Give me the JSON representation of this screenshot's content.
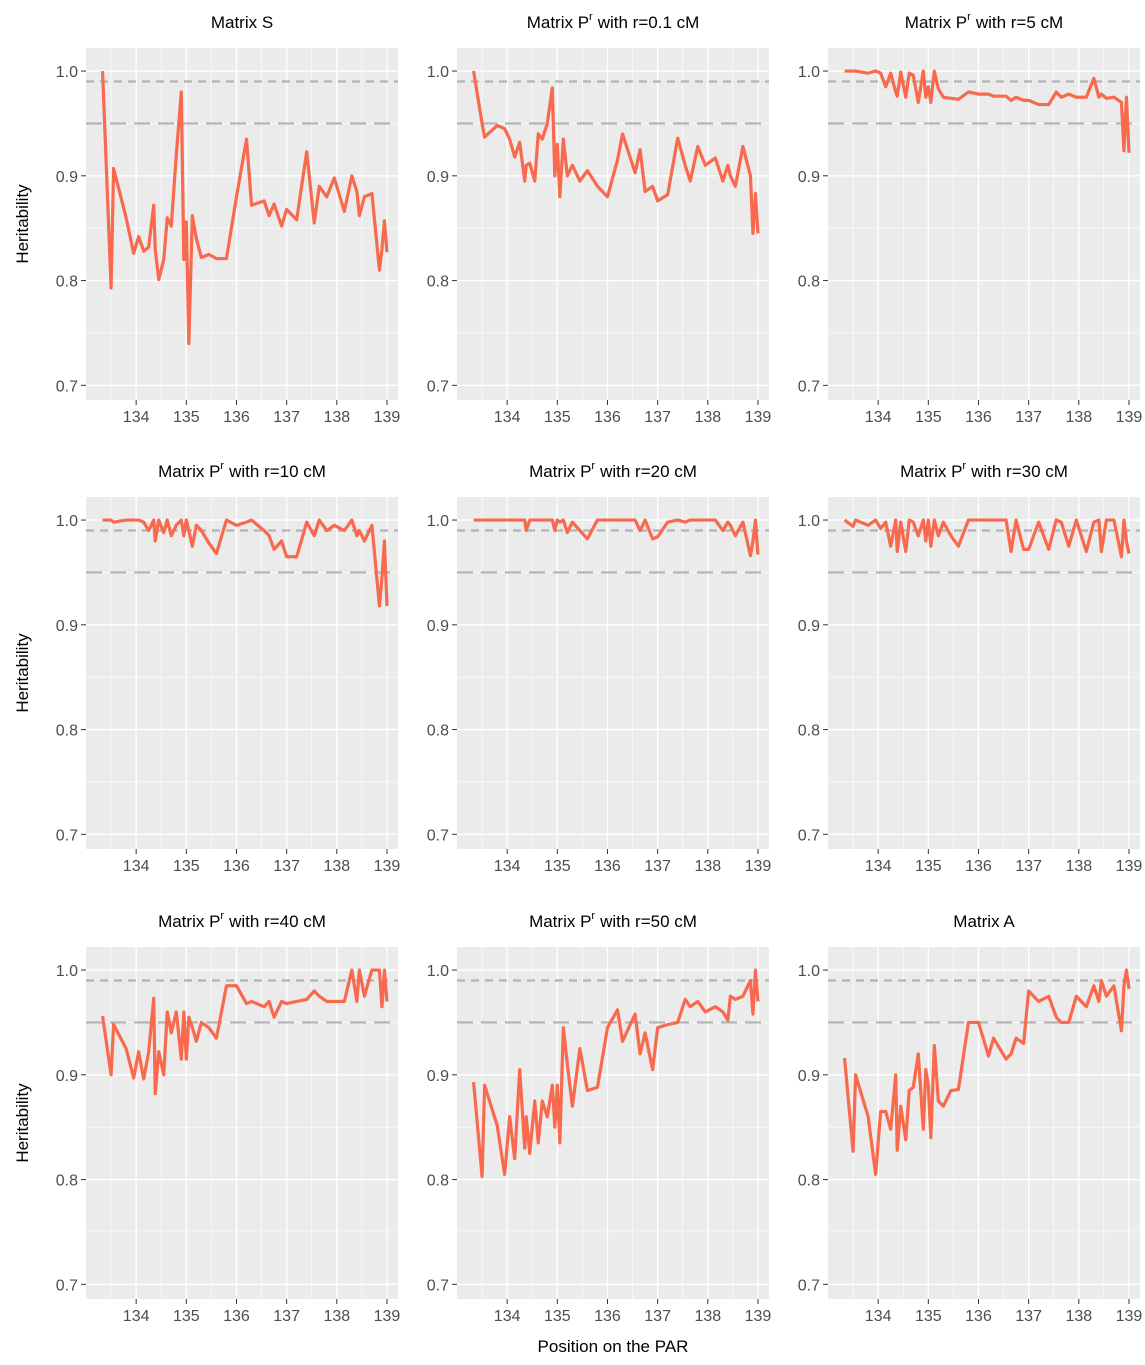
{
  "x_label": "Position on the PAR",
  "y_label": "Heritability",
  "chart_data": [
    {
      "type": "line",
      "title": "Matrix S",
      "color": "#f8694d",
      "hlines": [
        0.99,
        0.95
      ],
      "hline_styles": [
        "dashed",
        "longdash"
      ],
      "hline_color": "#b3b3b3",
      "grid": true,
      "xlim": [
        133.0,
        139.22
      ],
      "xticks": [
        134,
        135,
        136,
        137,
        138,
        139
      ],
      "ylim": [
        0.686,
        1.022
      ],
      "yticks": [
        0.7,
        0.8,
        0.9,
        {
          "value": 1,
          "label": "1.0"
        }
      ],
      "x": [
        133.33,
        133.5,
        133.55,
        133.8,
        133.95,
        134.05,
        134.15,
        134.25,
        134.35,
        134.38,
        134.45,
        134.55,
        134.62,
        134.7,
        134.8,
        134.9,
        134.95,
        135.0,
        135.05,
        135.12,
        135.2,
        135.3,
        135.45,
        135.6,
        135.8,
        136.0,
        136.2,
        136.3,
        136.55,
        136.65,
        136.75,
        136.9,
        137.0,
        137.2,
        137.4,
        137.55,
        137.65,
        137.8,
        137.95,
        138.15,
        138.3,
        138.4,
        138.45,
        138.55,
        138.7,
        138.85,
        138.9,
        138.95,
        139.0
      ],
      "values": [
        1.0,
        0.793,
        0.907,
        0.86,
        0.826,
        0.842,
        0.828,
        0.832,
        0.872,
        0.83,
        0.801,
        0.82,
        0.86,
        0.852,
        0.92,
        0.98,
        0.82,
        0.856,
        0.74,
        0.862,
        0.84,
        0.822,
        0.825,
        0.821,
        0.821,
        0.88,
        0.935,
        0.872,
        0.876,
        0.862,
        0.873,
        0.852,
        0.868,
        0.858,
        0.923,
        0.855,
        0.89,
        0.88,
        0.898,
        0.866,
        0.9,
        0.885,
        0.862,
        0.88,
        0.883,
        0.81,
        0.83,
        0.857,
        0.827
      ]
    },
    {
      "type": "line",
      "title": "Matrix P",
      "title_superscript": "r",
      "title_suffix": "with r=0.1 cM",
      "color": "#f8694d",
      "hlines": [
        0.99,
        0.95
      ],
      "hline_styles": [
        "dashed",
        "longdash"
      ],
      "hline_color": "#b3b3b3",
      "grid": true,
      "xlim": [
        133.0,
        139.22
      ],
      "xticks": [
        134,
        135,
        136,
        137,
        138,
        139
      ],
      "ylim": [
        0.686,
        1.022
      ],
      "yticks": [
        0.7,
        0.8,
        0.9,
        {
          "value": 1,
          "label": "1.0"
        }
      ],
      "x": [
        133.33,
        133.5,
        133.55,
        133.8,
        133.95,
        134.05,
        134.15,
        134.25,
        134.35,
        134.38,
        134.45,
        134.55,
        134.62,
        134.7,
        134.8,
        134.9,
        134.95,
        135.0,
        135.05,
        135.12,
        135.2,
        135.3,
        135.45,
        135.6,
        135.8,
        136.0,
        136.2,
        136.3,
        136.55,
        136.65,
        136.75,
        136.9,
        137.0,
        137.2,
        137.4,
        137.55,
        137.65,
        137.8,
        137.95,
        138.15,
        138.3,
        138.4,
        138.45,
        138.55,
        138.7,
        138.85,
        138.9,
        138.95,
        139.0
      ],
      "values": [
        1.0,
        0.95,
        0.937,
        0.948,
        0.945,
        0.935,
        0.918,
        0.932,
        0.895,
        0.91,
        0.912,
        0.895,
        0.94,
        0.935,
        0.95,
        0.984,
        0.9,
        0.93,
        0.88,
        0.935,
        0.9,
        0.91,
        0.895,
        0.905,
        0.89,
        0.88,
        0.915,
        0.94,
        0.903,
        0.925,
        0.885,
        0.89,
        0.876,
        0.882,
        0.936,
        0.91,
        0.895,
        0.928,
        0.91,
        0.917,
        0.895,
        0.91,
        0.9,
        0.89,
        0.928,
        0.9,
        0.845,
        0.883,
        0.845
      ]
    },
    {
      "type": "line",
      "title": "Matrix P",
      "title_superscript": "r",
      "title_suffix": "with r=5 cM",
      "color": "#f8694d",
      "hlines": [
        0.99,
        0.95
      ],
      "hline_styles": [
        "dashed",
        "longdash"
      ],
      "hline_color": "#b3b3b3",
      "grid": true,
      "xlim": [
        133.0,
        139.22
      ],
      "xticks": [
        134,
        135,
        136,
        137,
        138,
        139
      ],
      "ylim": [
        0.686,
        1.022
      ],
      "yticks": [
        0.7,
        0.8,
        0.9,
        {
          "value": 1,
          "label": "1.0"
        }
      ],
      "x": [
        133.33,
        133.5,
        133.55,
        133.8,
        133.95,
        134.05,
        134.15,
        134.25,
        134.35,
        134.38,
        134.45,
        134.55,
        134.62,
        134.7,
        134.8,
        134.9,
        134.95,
        135.0,
        135.05,
        135.12,
        135.2,
        135.3,
        135.45,
        135.6,
        135.8,
        136.0,
        136.2,
        136.3,
        136.55,
        136.65,
        136.75,
        136.9,
        137.0,
        137.2,
        137.4,
        137.55,
        137.65,
        137.8,
        137.95,
        138.15,
        138.3,
        138.4,
        138.45,
        138.55,
        138.7,
        138.85,
        138.9,
        138.95,
        139.0
      ],
      "values": [
        1.0,
        1.0,
        1.0,
        0.998,
        1.0,
        0.998,
        0.985,
        0.998,
        0.98,
        0.976,
        0.999,
        0.975,
        0.998,
        0.996,
        0.97,
        1.0,
        0.975,
        0.985,
        0.97,
        1.0,
        0.983,
        0.975,
        0.974,
        0.973,
        0.98,
        0.978,
        0.978,
        0.976,
        0.976,
        0.972,
        0.975,
        0.972,
        0.972,
        0.968,
        0.968,
        0.98,
        0.975,
        0.978,
        0.975,
        0.975,
        0.993,
        0.975,
        0.978,
        0.974,
        0.975,
        0.97,
        0.924,
        0.975,
        0.922
      ]
    },
    {
      "type": "line",
      "title": "Matrix P",
      "title_superscript": "r",
      "title_suffix": "with r=10 cM",
      "color": "#f8694d",
      "hlines": [
        0.99,
        0.95
      ],
      "hline_styles": [
        "dashed",
        "longdash"
      ],
      "hline_color": "#b3b3b3",
      "grid": true,
      "xlim": [
        133.0,
        139.22
      ],
      "xticks": [
        134,
        135,
        136,
        137,
        138,
        139
      ],
      "ylim": [
        0.686,
        1.022
      ],
      "yticks": [
        0.7,
        0.8,
        0.9,
        {
          "value": 1,
          "label": "1.0"
        }
      ],
      "x": [
        133.33,
        133.5,
        133.55,
        133.8,
        133.95,
        134.05,
        134.15,
        134.25,
        134.35,
        134.38,
        134.45,
        134.55,
        134.62,
        134.7,
        134.8,
        134.9,
        134.95,
        135.0,
        135.05,
        135.12,
        135.2,
        135.3,
        135.45,
        135.6,
        135.8,
        136.0,
        136.2,
        136.3,
        136.55,
        136.65,
        136.75,
        136.9,
        137.0,
        137.2,
        137.4,
        137.55,
        137.65,
        137.8,
        137.95,
        138.15,
        138.3,
        138.4,
        138.45,
        138.55,
        138.7,
        138.85,
        138.9,
        138.95,
        139.0
      ],
      "values": [
        1.0,
        1.0,
        0.998,
        1.0,
        1.0,
        1.0,
        0.998,
        0.99,
        1.0,
        0.98,
        1.0,
        0.988,
        1.0,
        0.985,
        0.995,
        1.0,
        0.985,
        1.0,
        0.99,
        0.975,
        0.995,
        0.99,
        0.978,
        0.968,
        1.0,
        0.995,
        0.998,
        1.0,
        0.99,
        0.985,
        0.972,
        0.98,
        0.965,
        0.965,
        0.998,
        0.985,
        1.0,
        0.99,
        0.995,
        0.99,
        1.0,
        0.985,
        0.99,
        0.98,
        0.995,
        0.918,
        0.945,
        0.98,
        0.918
      ]
    },
    {
      "type": "line",
      "title": "Matrix P",
      "title_superscript": "r",
      "title_suffix": "with r=20 cM",
      "color": "#f8694d",
      "hlines": [
        0.99,
        0.95
      ],
      "hline_styles": [
        "dashed",
        "longdash"
      ],
      "hline_color": "#b3b3b3",
      "grid": true,
      "xlim": [
        133.0,
        139.22
      ],
      "xticks": [
        134,
        135,
        136,
        137,
        138,
        139
      ],
      "ylim": [
        0.686,
        1.022
      ],
      "yticks": [
        0.7,
        0.8,
        0.9,
        {
          "value": 1,
          "label": "1.0"
        }
      ],
      "x": [
        133.33,
        133.5,
        133.55,
        133.8,
        133.95,
        134.05,
        134.15,
        134.25,
        134.35,
        134.38,
        134.45,
        134.55,
        134.62,
        134.7,
        134.8,
        134.9,
        134.95,
        135.0,
        135.05,
        135.12,
        135.2,
        135.3,
        135.45,
        135.6,
        135.8,
        136.0,
        136.2,
        136.3,
        136.55,
        136.65,
        136.75,
        136.9,
        137.0,
        137.2,
        137.4,
        137.55,
        137.65,
        137.8,
        137.95,
        138.15,
        138.3,
        138.4,
        138.45,
        138.55,
        138.7,
        138.85,
        138.9,
        138.95,
        139.0
      ],
      "values": [
        1,
        1,
        1,
        1,
        1,
        1,
        1,
        1,
        1,
        0.99,
        1,
        1,
        1,
        1,
        1,
        1,
        0.99,
        1,
        0.998,
        1,
        0.988,
        0.998,
        0.99,
        0.982,
        1,
        1,
        1,
        1,
        1,
        0.99,
        1,
        0.982,
        0.984,
        0.998,
        1,
        0.998,
        1,
        1,
        1,
        1,
        0.99,
        0.998,
        0.995,
        0.985,
        0.998,
        0.966,
        0.98,
        1,
        0.967
      ]
    },
    {
      "type": "line",
      "title": "Matrix P",
      "title_superscript": "r",
      "title_suffix": "with r=30 cM",
      "color": "#f8694d",
      "hlines": [
        0.99,
        0.95
      ],
      "hline_styles": [
        "dashed",
        "longdash"
      ],
      "hline_color": "#b3b3b3",
      "grid": true,
      "xlim": [
        133.0,
        139.22
      ],
      "xticks": [
        134,
        135,
        136,
        137,
        138,
        139
      ],
      "ylim": [
        0.686,
        1.022
      ],
      "yticks": [
        0.7,
        0.8,
        0.9,
        {
          "value": 1,
          "label": "1.0"
        }
      ],
      "x": [
        133.33,
        133.5,
        133.55,
        133.8,
        133.95,
        134.05,
        134.15,
        134.25,
        134.35,
        134.38,
        134.45,
        134.55,
        134.62,
        134.7,
        134.8,
        134.9,
        134.95,
        135.0,
        135.05,
        135.12,
        135.2,
        135.3,
        135.45,
        135.6,
        135.8,
        136.0,
        136.2,
        136.3,
        136.55,
        136.65,
        136.75,
        136.9,
        137.0,
        137.2,
        137.4,
        137.55,
        137.65,
        137.8,
        137.95,
        138.15,
        138.3,
        138.4,
        138.45,
        138.55,
        138.7,
        138.85,
        138.9,
        138.95,
        139.0
      ],
      "values": [
        1,
        0.994,
        1,
        0.995,
        1,
        0.992,
        0.998,
        0.975,
        1,
        0.97,
        0.998,
        0.97,
        1,
        0.998,
        0.985,
        1,
        0.98,
        1,
        0.975,
        1,
        0.985,
        0.998,
        0.985,
        0.975,
        1,
        1,
        1,
        1,
        1,
        0.97,
        1,
        0.972,
        0.972,
        0.998,
        0.972,
        1,
        0.998,
        0.975,
        1,
        0.97,
        0.998,
        1,
        0.97,
        1,
        1,
        0.965,
        1,
        0.98,
        0.968
      ]
    },
    {
      "type": "line",
      "title": "Matrix P",
      "title_superscript": "r",
      "title_suffix": "with r=40 cM",
      "color": "#f8694d",
      "hlines": [
        0.99,
        0.95
      ],
      "hline_styles": [
        "dashed",
        "longdash"
      ],
      "hline_color": "#b3b3b3",
      "grid": true,
      "xlim": [
        133.0,
        139.22
      ],
      "xticks": [
        134,
        135,
        136,
        137,
        138,
        139
      ],
      "ylim": [
        0.686,
        1.022
      ],
      "yticks": [
        0.7,
        0.8,
        0.9,
        {
          "value": 1,
          "label": "1.0"
        }
      ],
      "x": [
        133.33,
        133.5,
        133.55,
        133.8,
        133.95,
        134.05,
        134.15,
        134.25,
        134.35,
        134.38,
        134.45,
        134.55,
        134.62,
        134.7,
        134.8,
        134.9,
        134.95,
        135.0,
        135.05,
        135.12,
        135.2,
        135.3,
        135.45,
        135.6,
        135.8,
        136.0,
        136.2,
        136.3,
        136.55,
        136.65,
        136.75,
        136.9,
        137.0,
        137.2,
        137.4,
        137.55,
        137.65,
        137.8,
        137.95,
        138.15,
        138.3,
        138.4,
        138.45,
        138.55,
        138.7,
        138.85,
        138.9,
        138.95,
        139.0
      ],
      "values": [
        0.956,
        0.9,
        0.948,
        0.925,
        0.897,
        0.922,
        0.896,
        0.922,
        0.973,
        0.882,
        0.922,
        0.9,
        0.96,
        0.94,
        0.96,
        0.915,
        0.96,
        0.915,
        0.955,
        0.945,
        0.932,
        0.95,
        0.945,
        0.935,
        0.985,
        0.985,
        0.968,
        0.97,
        0.965,
        0.97,
        0.955,
        0.97,
        0.968,
        0.97,
        0.972,
        0.98,
        0.975,
        0.97,
        0.97,
        0.97,
        1.0,
        0.97,
        1.0,
        0.975,
        1.0,
        1.0,
        0.965,
        1.0,
        0.97
      ]
    },
    {
      "type": "line",
      "title": "Matrix P",
      "title_superscript": "r",
      "title_suffix": "with r=50 cM",
      "color": "#f8694d",
      "hlines": [
        0.99,
        0.95
      ],
      "hline_styles": [
        "dashed",
        "longdash"
      ],
      "hline_color": "#b3b3b3",
      "grid": true,
      "xlim": [
        133.0,
        139.22
      ],
      "xticks": [
        134,
        135,
        136,
        137,
        138,
        139
      ],
      "ylim": [
        0.686,
        1.022
      ],
      "yticks": [
        0.7,
        0.8,
        0.9,
        {
          "value": 1,
          "label": "1.0"
        }
      ],
      "x": [
        133.33,
        133.5,
        133.55,
        133.8,
        133.95,
        134.05,
        134.15,
        134.25,
        134.35,
        134.38,
        134.45,
        134.55,
        134.62,
        134.7,
        134.8,
        134.9,
        134.95,
        135.0,
        135.05,
        135.12,
        135.2,
        135.3,
        135.45,
        135.6,
        135.8,
        136.0,
        136.2,
        136.3,
        136.55,
        136.65,
        136.75,
        136.9,
        137.0,
        137.2,
        137.4,
        137.55,
        137.65,
        137.8,
        137.95,
        138.15,
        138.3,
        138.4,
        138.45,
        138.55,
        138.7,
        138.85,
        138.9,
        138.95,
        139.0
      ],
      "values": [
        0.893,
        0.803,
        0.89,
        0.852,
        0.805,
        0.86,
        0.82,
        0.905,
        0.83,
        0.86,
        0.825,
        0.875,
        0.835,
        0.875,
        0.86,
        0.89,
        0.85,
        0.89,
        0.835,
        0.945,
        0.91,
        0.87,
        0.925,
        0.885,
        0.888,
        0.945,
        0.962,
        0.932,
        0.958,
        0.92,
        0.94,
        0.905,
        0.945,
        0.948,
        0.95,
        0.972,
        0.965,
        0.97,
        0.96,
        0.965,
        0.96,
        0.952,
        0.975,
        0.972,
        0.975,
        0.99,
        0.958,
        1.0,
        0.97
      ]
    },
    {
      "type": "line",
      "title": "Matrix A",
      "color": "#f8694d",
      "hlines": [
        0.99,
        0.95
      ],
      "hline_styles": [
        "dashed",
        "longdash"
      ],
      "hline_color": "#b3b3b3",
      "grid": true,
      "xlim": [
        133.0,
        139.22
      ],
      "xticks": [
        134,
        135,
        136,
        137,
        138,
        139
      ],
      "ylim": [
        0.686,
        1.022
      ],
      "yticks": [
        0.7,
        0.8,
        0.9,
        {
          "value": 1,
          "label": "1.0"
        }
      ],
      "x": [
        133.33,
        133.5,
        133.55,
        133.8,
        133.95,
        134.05,
        134.15,
        134.25,
        134.35,
        134.38,
        134.45,
        134.55,
        134.62,
        134.7,
        134.8,
        134.9,
        134.95,
        135.0,
        135.05,
        135.12,
        135.2,
        135.3,
        135.45,
        135.6,
        135.8,
        136.0,
        136.2,
        136.3,
        136.55,
        136.65,
        136.75,
        136.9,
        137.0,
        137.2,
        137.4,
        137.55,
        137.65,
        137.8,
        137.95,
        138.15,
        138.3,
        138.4,
        138.45,
        138.55,
        138.7,
        138.85,
        138.9,
        138.95,
        139.0
      ],
      "values": [
        0.916,
        0.827,
        0.9,
        0.86,
        0.805,
        0.865,
        0.865,
        0.848,
        0.9,
        0.828,
        0.87,
        0.838,
        0.885,
        0.888,
        0.92,
        0.848,
        0.905,
        0.89,
        0.84,
        0.928,
        0.875,
        0.87,
        0.885,
        0.886,
        0.95,
        0.95,
        0.918,
        0.935,
        0.915,
        0.92,
        0.935,
        0.93,
        0.98,
        0.97,
        0.975,
        0.955,
        0.95,
        0.95,
        0.975,
        0.965,
        0.985,
        0.97,
        0.99,
        0.975,
        0.985,
        0.942,
        0.985,
        1.0,
        0.982
      ]
    }
  ]
}
